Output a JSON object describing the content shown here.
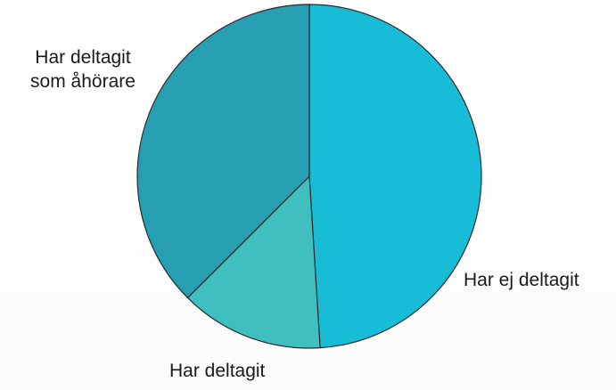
{
  "chart_data": {
    "type": "pie",
    "categories": [
      "Har ej deltagit",
      "Har deltagit",
      "Har deltagit\nsom åhörare"
    ],
    "values": [
      49.0,
      13.5,
      37.5
    ],
    "unit": "%",
    "start_angle_deg": 0,
    "direction": "clockwise",
    "colors": [
      "#19bcd7",
      "#3fbfbf",
      "#259fb1"
    ],
    "border_color": "#2b2b2b",
    "title": ""
  }
}
